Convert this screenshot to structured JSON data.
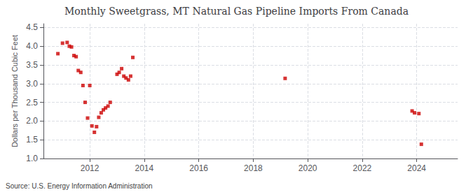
{
  "chart_data": {
    "type": "scatter",
    "title": "Monthly Sweetgrass, MT Natural Gas Pipeline Imports From Canada",
    "ylabel": "Dollars per Thousand Cubic Feet",
    "source": "Source: U.S. Energy Information Administration",
    "color": "#cc0000",
    "marker": "square",
    "grid": true,
    "xlim": [
      2010.3,
      2025.5
    ],
    "xticks": [
      2012,
      2014,
      2016,
      2018,
      2020,
      2022,
      2024
    ],
    "ylim": [
      1.0,
      4.6
    ],
    "yticks": [
      {
        "value": 1.0,
        "label": "1.0"
      },
      {
        "value": 1.5,
        "label": "1.5"
      },
      {
        "value": 2.0,
        "label": "2.0"
      },
      {
        "value": 2.5,
        "label": "2.5"
      },
      {
        "value": 3.0,
        "label": "3.0"
      },
      {
        "value": 3.5,
        "label": "3.5"
      },
      {
        "value": 4.0,
        "label": "4.0"
      },
      {
        "value": 4.5,
        "label": "4.5"
      }
    ],
    "x": [
      2010.83,
      2011.0,
      2011.17,
      2011.25,
      2011.33,
      2011.42,
      2011.5,
      2011.58,
      2011.67,
      2011.75,
      2011.83,
      2011.92,
      2012.0,
      2012.08,
      2012.17,
      2012.25,
      2012.33,
      2012.42,
      2012.5,
      2012.58,
      2012.67,
      2012.75,
      2013.0,
      2013.08,
      2013.17,
      2013.25,
      2013.33,
      2013.42,
      2013.5,
      2013.58,
      2019.17,
      2023.83,
      2023.92,
      2024.08,
      2024.17
    ],
    "values": [
      3.8,
      4.08,
      4.1,
      4.0,
      3.98,
      3.75,
      3.72,
      3.35,
      3.3,
      2.95,
      2.5,
      2.08,
      2.95,
      1.87,
      1.7,
      1.85,
      2.1,
      2.22,
      2.3,
      2.35,
      2.4,
      2.5,
      3.25,
      3.3,
      3.4,
      3.2,
      3.15,
      3.1,
      3.2,
      3.7,
      3.14,
      2.27,
      2.22,
      2.2,
      1.38
    ]
  }
}
